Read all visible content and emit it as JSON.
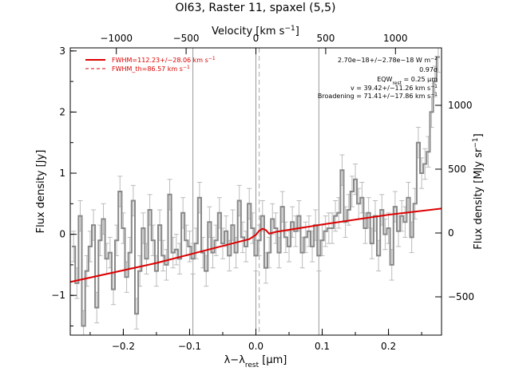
{
  "chart_data": {
    "type": "line",
    "title": "OI63, Raster 11, spaxel (5,5)",
    "xlabel": "λ−λ_rest [μm]",
    "ylabel": "Flux density [Jy]",
    "top_xlabel": "Velocity [km s^-1]",
    "right_ylabel": "Flux density [MJy sr^-1]",
    "xlim": [
      -0.28,
      0.28
    ],
    "ylim": [
      -1.65,
      3.05
    ],
    "top_xlim": [
      -1330,
      1330
    ],
    "right_ylim": [
      -800,
      1450
    ],
    "xticks": [
      -0.2,
      -0.1,
      0.0,
      0.1,
      0.2
    ],
    "xtick_labels": [
      "−0.2",
      "−0.1",
      "0.0",
      "0.1",
      "0.2"
    ],
    "yticks": [
      -1,
      0,
      1,
      2,
      3
    ],
    "ytick_labels": [
      "−1",
      "0",
      "1",
      "2",
      "3"
    ],
    "top_xticks": [
      -1000,
      -500,
      0,
      500,
      1000
    ],
    "top_xtick_labels": [
      "−1000",
      "−500",
      "0",
      "500",
      "1000"
    ],
    "right_yticks": [
      -500,
      0,
      500,
      1000
    ],
    "right_ytick_labels": [
      "−500",
      "0",
      "500",
      "1000"
    ],
    "vlines_solid": [
      -0.095,
      0.0,
      0.095
    ],
    "vline_dashed": 0.005,
    "grid": false,
    "legend_position": "top-left",
    "series": [
      {
        "name": "FWHM=112.23+/−28.06 km s^-1",
        "kind": "model",
        "color": "#dd0000",
        "x": [
          -0.28,
          -0.15,
          -0.05,
          -0.01,
          0.0,
          0.005,
          0.01,
          0.015,
          0.02,
          0.03,
          0.1,
          0.2,
          0.28
        ],
        "y": [
          -0.78,
          -0.47,
          -0.19,
          -0.08,
          -0.01,
          0.06,
          0.09,
          0.07,
          0.01,
          0.04,
          0.16,
          0.32,
          0.42
        ]
      },
      {
        "name": "FWHM_th=86.57 km s^-1",
        "kind": "legend-only",
        "color": "#dd0000"
      },
      {
        "name": "spectrum",
        "kind": "data",
        "color": "#888888",
        "x": [
          -0.275,
          -0.27,
          -0.265,
          -0.26,
          -0.255,
          -0.25,
          -0.245,
          -0.24,
          -0.235,
          -0.23,
          -0.225,
          -0.22,
          -0.215,
          -0.21,
          -0.205,
          -0.2,
          -0.195,
          -0.19,
          -0.185,
          -0.18,
          -0.175,
          -0.17,
          -0.165,
          -0.16,
          -0.155,
          -0.15,
          -0.145,
          -0.14,
          -0.135,
          -0.13,
          -0.125,
          -0.12,
          -0.115,
          -0.11,
          -0.105,
          -0.1,
          -0.095,
          -0.09,
          -0.085,
          -0.08,
          -0.075,
          -0.07,
          -0.065,
          -0.06,
          -0.055,
          -0.05,
          -0.045,
          -0.04,
          -0.035,
          -0.03,
          -0.025,
          -0.02,
          -0.015,
          -0.01,
          -0.005,
          0.0,
          0.005,
          0.01,
          0.015,
          0.02,
          0.025,
          0.03,
          0.035,
          0.04,
          0.045,
          0.05,
          0.055,
          0.06,
          0.065,
          0.07,
          0.075,
          0.08,
          0.085,
          0.09,
          0.095,
          0.1,
          0.105,
          0.11,
          0.115,
          0.12,
          0.125,
          0.13,
          0.135,
          0.14,
          0.145,
          0.15,
          0.155,
          0.16,
          0.165,
          0.17,
          0.175,
          0.18,
          0.185,
          0.19,
          0.195,
          0.2,
          0.205,
          0.21,
          0.215,
          0.22,
          0.225,
          0.23,
          0.235,
          0.24,
          0.245,
          0.25,
          0.255,
          0.26,
          0.265,
          0.27,
          0.275
        ],
        "y": [
          -0.2,
          -0.8,
          0.3,
          -1.5,
          -0.6,
          -0.2,
          0.15,
          -1.2,
          -0.1,
          0.25,
          -0.4,
          -0.3,
          -0.9,
          -0.1,
          0.7,
          0.1,
          -0.7,
          -0.3,
          0.55,
          -1.3,
          -0.6,
          0.1,
          -0.4,
          0.4,
          -0.1,
          -0.6,
          0.15,
          -0.35,
          -0.5,
          0.65,
          -0.3,
          -0.25,
          -0.4,
          0.35,
          -0.1,
          -0.2,
          -0.4,
          -0.15,
          0.6,
          -0.3,
          -0.6,
          0.2,
          -0.3,
          -0.1,
          0.35,
          -0.15,
          0.05,
          -0.35,
          0.15,
          -0.3,
          0.55,
          -0.05,
          -0.2,
          0.5,
          0.1,
          -0.35,
          -0.1,
          0.3,
          -0.55,
          -0.3,
          0.25,
          0.1,
          -0.3,
          0.45,
          -0.05,
          -0.2,
          0.2,
          0.05,
          0.3,
          -0.3,
          -0.05,
          0.05,
          -0.2,
          0.15,
          -0.35,
          -0.1,
          0.05,
          0.1,
          0.1,
          0.3,
          0.35,
          1.05,
          0.2,
          0.4,
          0.7,
          0.9,
          0.5,
          0.6,
          0.1,
          0.35,
          -0.15,
          0.3,
          -0.35,
          0.4,
          0.0,
          0.1,
          -0.5,
          0.45,
          0.05,
          0.3,
          0.2,
          0.6,
          -0.05,
          0.5,
          1.5,
          1.0,
          1.15,
          1.35,
          2.0,
          2.5,
          2.9
        ],
        "err": 0.25
      }
    ],
    "annotations": [
      "2.70e−18+/−2.78e−18 W m^-2",
      "0.97σ",
      "EQW_rest = 0.25 μm",
      "v = 39.42+/−11.26 km s^-1",
      "Broadening = 71.41+/−17.86 km s^-1"
    ]
  }
}
